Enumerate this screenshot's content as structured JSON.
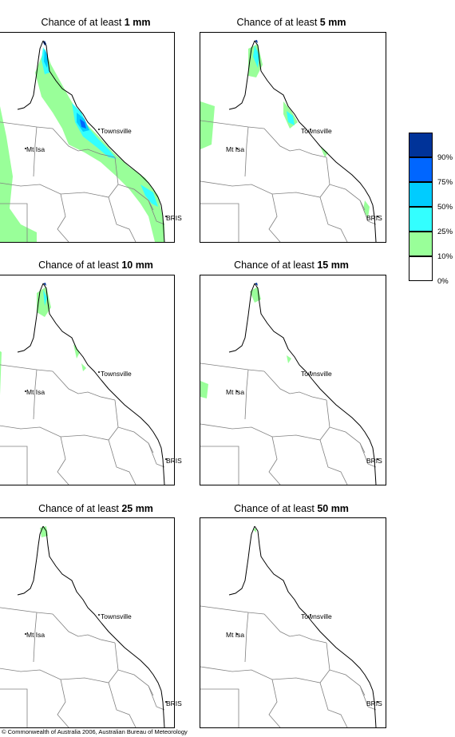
{
  "colors": {
    "band_10_25": "#99ff99",
    "band_25_50": "#33ffff",
    "band_50_75": "#00ccff",
    "band_75_90": "#0066ff",
    "band_90_100": "#003399",
    "border": "#000000",
    "state_lines": "#808080"
  },
  "panels": [
    {
      "title_prefix": "Chance of at least",
      "amount": "1 mm",
      "level": 1
    },
    {
      "title_prefix": "Chance of at least",
      "amount": "5 mm",
      "level": 2
    },
    {
      "title_prefix": "Chance of at least",
      "amount": "10 mm",
      "level": 3
    },
    {
      "title_prefix": "Chance of at least",
      "amount": "15 mm",
      "level": 4
    },
    {
      "title_prefix": "Chance of at least",
      "amount": "25 mm",
      "level": 5
    },
    {
      "title_prefix": "Chance of at least",
      "amount": "50 mm",
      "level": 6
    }
  ],
  "places": {
    "townsville": "Townsville",
    "mt_isa": "Mt Isa",
    "brisbane": "BRIS"
  },
  "legend": {
    "ticks": [
      "90%",
      "75%",
      "50%",
      "25%",
      "10%",
      "0%"
    ]
  },
  "copyright": "© Commonwealth of Australia 2006, Australian Bureau of Meteorology"
}
